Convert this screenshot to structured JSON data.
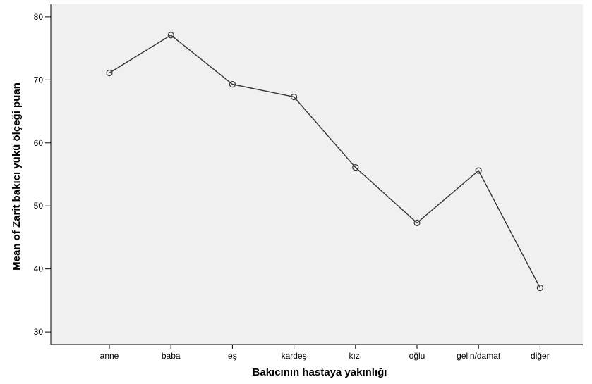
{
  "chart_data": {
    "type": "line",
    "xlabel": "Bakıcının hastaya yakınlığı",
    "ylabel": "Mean of Zarit bakıcı yükü ölçeği puan",
    "categories": [
      "anne",
      "baba",
      "eş",
      "kardeş",
      "kızı",
      "oğlu",
      "gelin/damat",
      "diğer"
    ],
    "values": [
      71.1,
      77.1,
      69.3,
      67.3,
      56.1,
      47.3,
      55.6,
      37.0
    ],
    "ylim": [
      28,
      82
    ],
    "yticks": [
      30,
      40,
      50,
      60,
      70,
      80
    ],
    "grid": false,
    "marker": "open-circle",
    "colors": {
      "plot_background": "#f0f0f0",
      "line": "#333333",
      "axis": "#000000"
    }
  }
}
